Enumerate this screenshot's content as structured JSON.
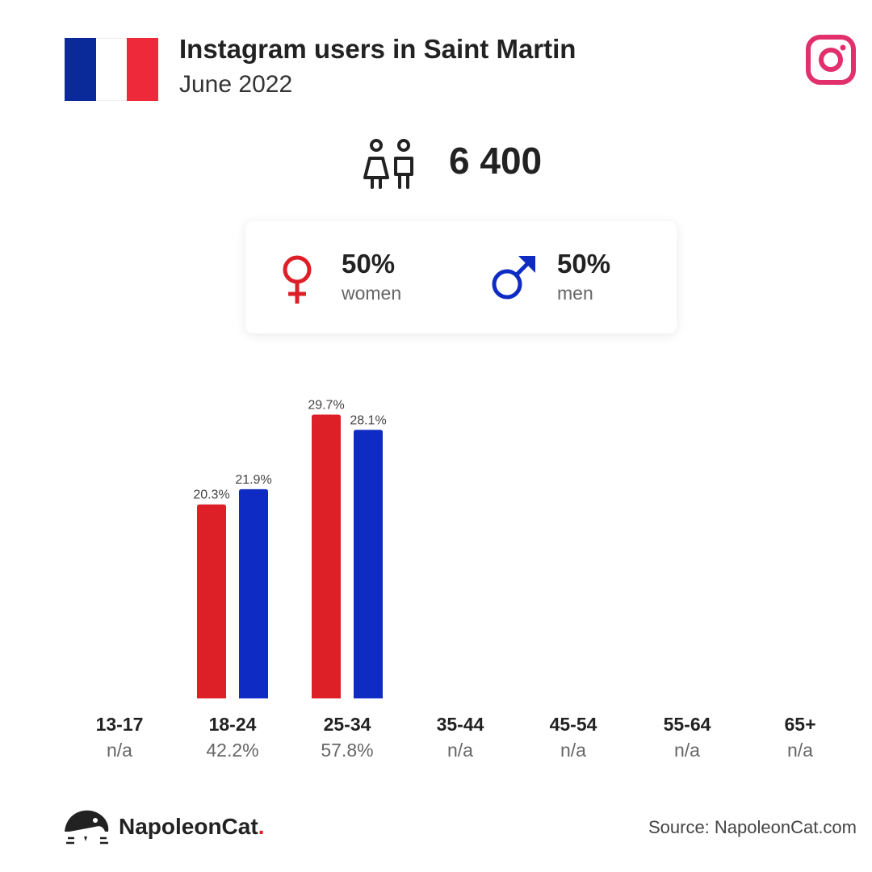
{
  "header": {
    "title": "Instagram users in Saint Martin",
    "subtitle": "June 2022"
  },
  "users": {
    "total": "6 400"
  },
  "gender": {
    "women_pct": "50%",
    "women_label": "women",
    "men_pct": "50%",
    "men_label": "men"
  },
  "colors": {
    "women": "#dd1f27",
    "men": "#0e2bc4",
    "instagram": "#e1306c",
    "flag": [
      "#0a2a9a",
      "#ffffff",
      "#ee2a3a"
    ]
  },
  "chart_data": {
    "type": "bar",
    "categories": [
      "13-17",
      "18-24",
      "25-34",
      "35-44",
      "45-54",
      "55-64",
      "65+"
    ],
    "series": [
      {
        "name": "women",
        "values": [
          null,
          20.3,
          29.7,
          null,
          null,
          null,
          null
        ],
        "labels": [
          "",
          "20.3%",
          "29.7%",
          "",
          "",
          "",
          ""
        ]
      },
      {
        "name": "men",
        "values": [
          null,
          21.9,
          28.1,
          null,
          null,
          null,
          null
        ],
        "labels": [
          "",
          "21.9%",
          "28.1%",
          "",
          "",
          "",
          ""
        ]
      }
    ],
    "category_totals": [
      "n/a",
      "42.2%",
      "57.8%",
      "n/a",
      "n/a",
      "n/a",
      "n/a"
    ],
    "ylim": [
      0,
      30
    ],
    "grid": false,
    "legend": "none"
  },
  "footer": {
    "brand_name": "NapoleonCat",
    "brand_dot": ".",
    "source": "Source: NapoleonCat.com"
  }
}
